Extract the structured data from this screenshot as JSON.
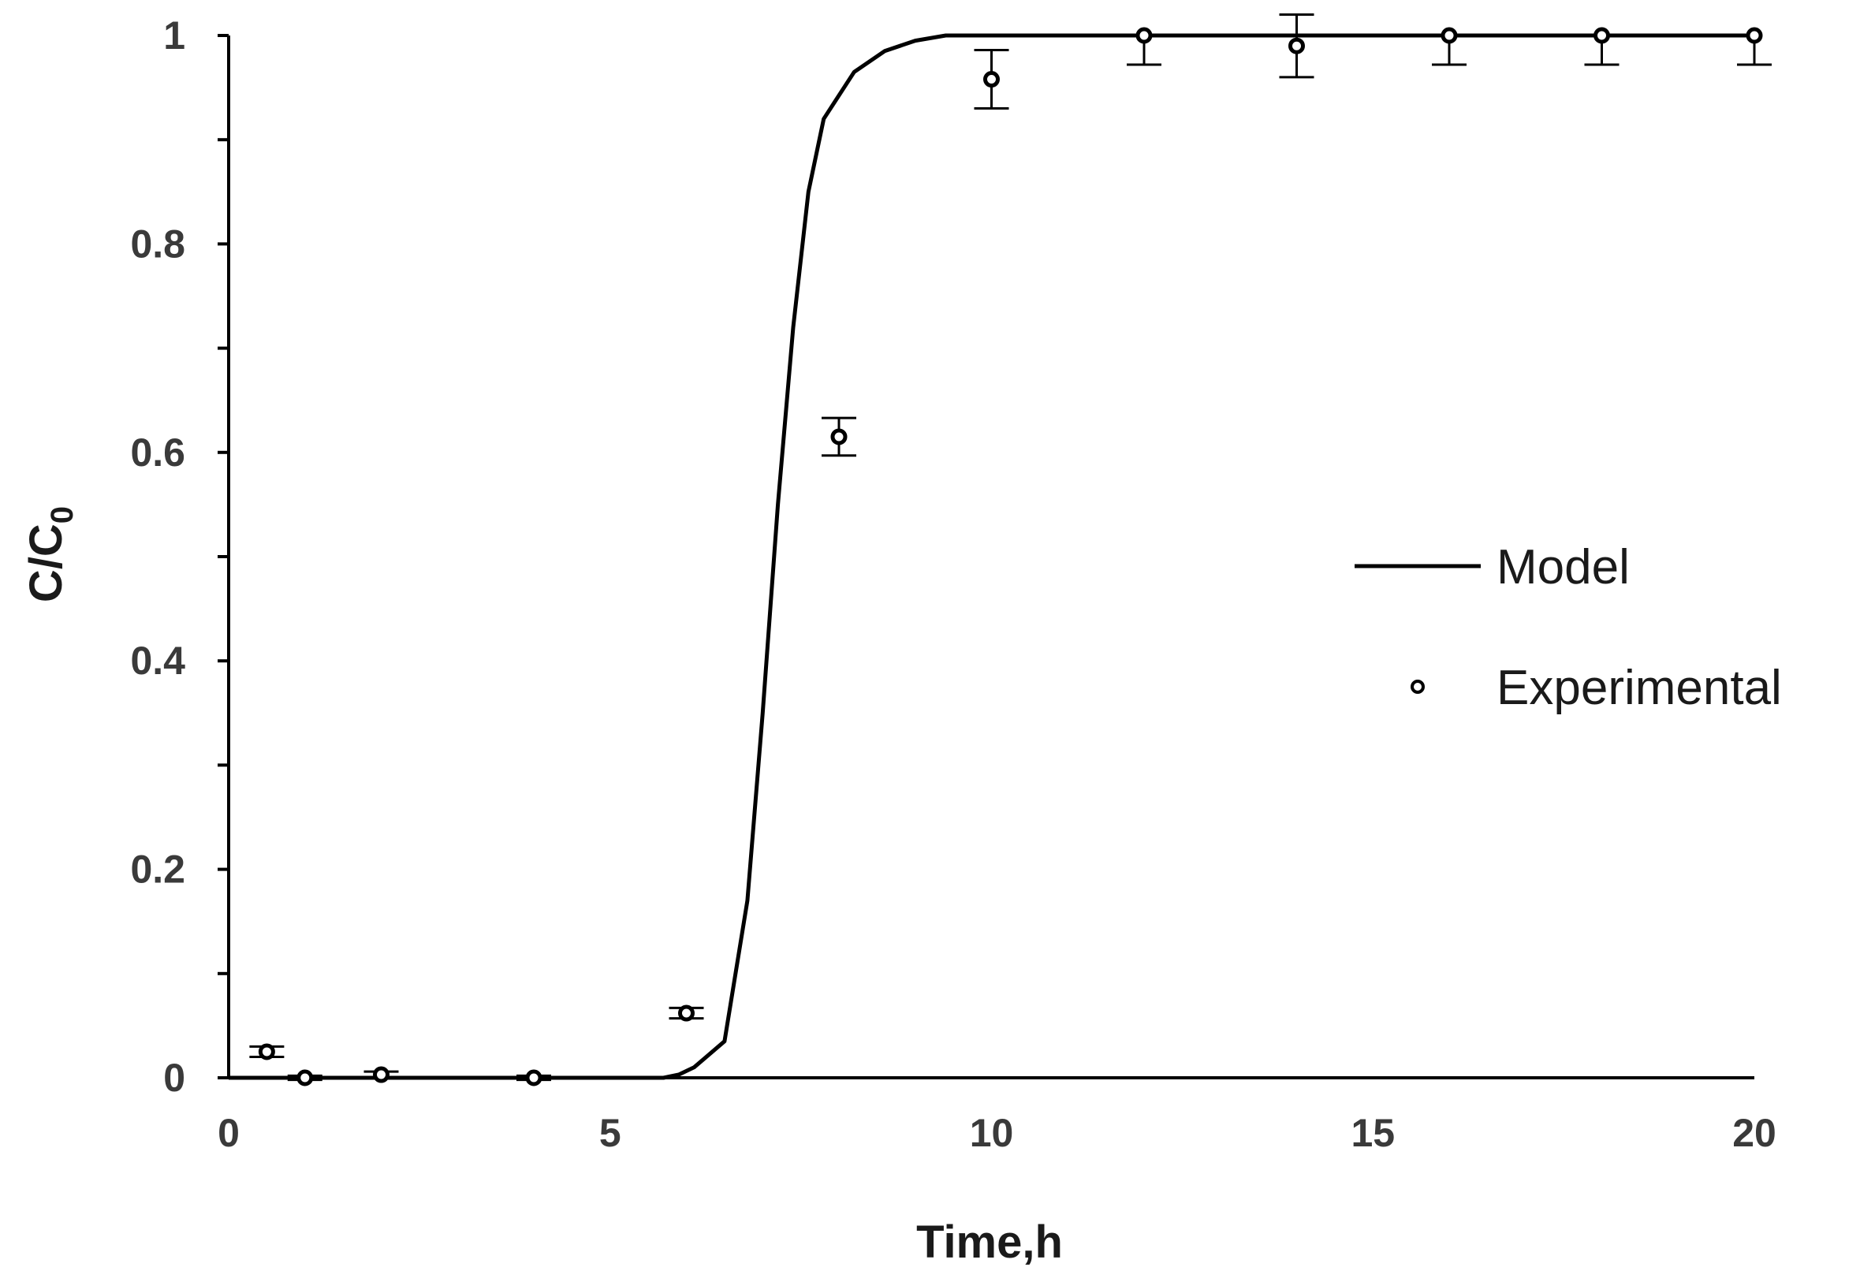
{
  "chart_data": {
    "type": "scatter",
    "title": "",
    "xlabel": "Time,h",
    "ylabel_main": "C/C",
    "ylabel_sub": "0",
    "xlim": [
      0,
      20
    ],
    "ylim": [
      0,
      1
    ],
    "x_ticks": [
      0,
      5,
      10,
      15,
      20
    ],
    "y_ticks": [
      0,
      0.2,
      0.4,
      0.6,
      0.8,
      1
    ],
    "x_tick_labels": [
      "0",
      "5",
      "10",
      "15",
      "20"
    ],
    "y_tick_labels": [
      "0",
      "0.2",
      "0.4",
      "0.6",
      "0.8",
      "1"
    ],
    "y_minor_ticks": [
      0.1,
      0.3,
      0.5,
      0.7,
      0.9
    ],
    "grid": false,
    "legend_position": "right",
    "colors": {
      "line": "#000000",
      "marker": "#000000",
      "axis": "#000000"
    },
    "series": [
      {
        "name": "Model",
        "type": "line",
        "x": [
          0,
          5.7,
          5.9,
          6.1,
          6.5,
          6.8,
          7.0,
          7.2,
          7.4,
          7.6,
          7.8,
          8.2,
          8.6,
          9.0,
          9.4,
          10.0,
          20
        ],
        "y": [
          0,
          0,
          0.003,
          0.01,
          0.035,
          0.17,
          0.35,
          0.55,
          0.72,
          0.85,
          0.92,
          0.965,
          0.985,
          0.995,
          1.0,
          1.0,
          1.0
        ]
      },
      {
        "name": "Experimental",
        "type": "scatter",
        "x": [
          0.5,
          1,
          2,
          4,
          6,
          8,
          10,
          12,
          14,
          16,
          18,
          20
        ],
        "y": [
          0.025,
          0.0,
          0.003,
          0.0,
          0.062,
          0.615,
          0.958,
          1.0,
          0.99,
          1.0,
          1.0,
          1.0
        ],
        "error": [
          0.005,
          0.002,
          0.003,
          0.002,
          0.005,
          0.018,
          0.028,
          0.028,
          0.03,
          0.028,
          0.028,
          0.028
        ],
        "error_direction": [
          "both",
          "both",
          "both",
          "both",
          "both",
          "both",
          "both",
          "down",
          "both",
          "down",
          "down",
          "down"
        ]
      }
    ]
  }
}
